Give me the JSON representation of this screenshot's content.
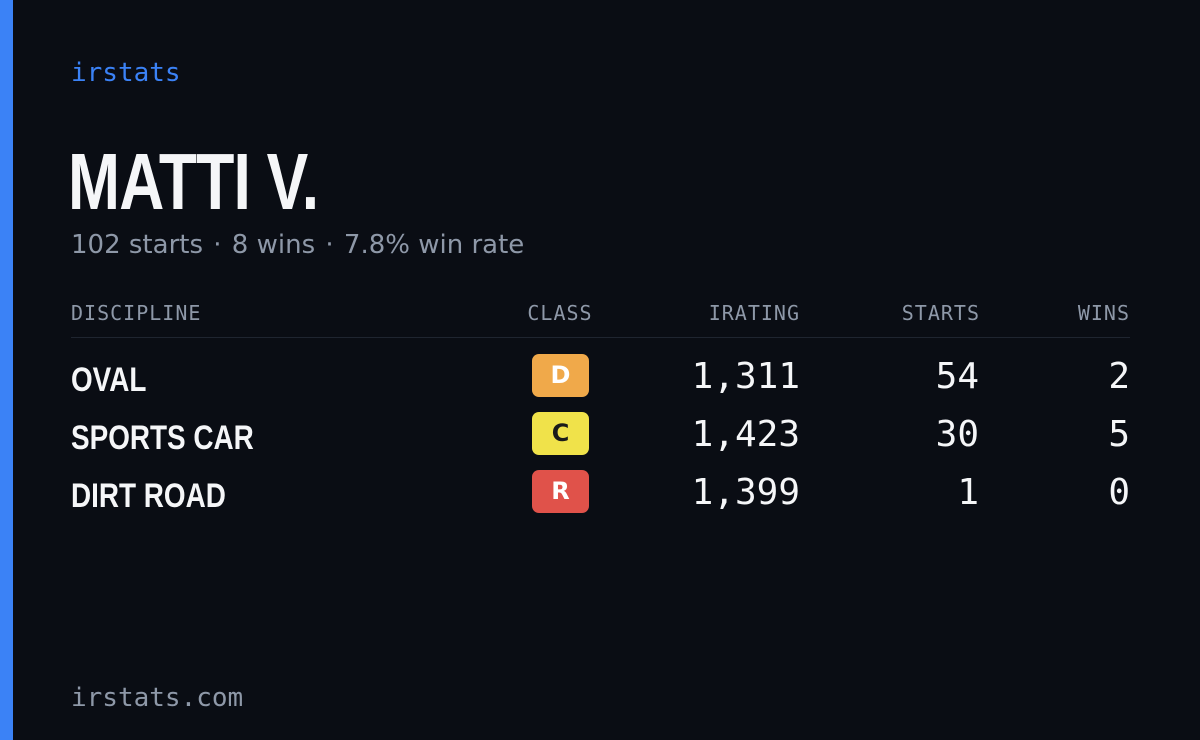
{
  "brand": "irstats",
  "driver": {
    "name": "MATTI V.",
    "summary": {
      "starts": "102 starts",
      "wins": "8 wins",
      "win_rate": "7.8% win rate",
      "separator": "·"
    }
  },
  "table": {
    "headers": {
      "discipline": "DISCIPLINE",
      "class": "CLASS",
      "irating": "IRATING",
      "starts": "STARTS",
      "wins": "WINS"
    },
    "rows": [
      {
        "discipline": "OVAL",
        "class": "D",
        "class_color": "#f0a94a",
        "class_text_color": "#ffffff",
        "irating": "1,311",
        "starts": "54",
        "wins": "2"
      },
      {
        "discipline": "SPORTS CAR",
        "class": "C",
        "class_color": "#f0e24a",
        "class_text_color": "#1a1a1a",
        "irating": "1,423",
        "starts": "30",
        "wins": "5"
      },
      {
        "discipline": "DIRT ROAD",
        "class": "R",
        "class_color": "#e0524a",
        "class_text_color": "#ffffff",
        "irating": "1,399",
        "starts": "1",
        "wins": "0"
      }
    ]
  },
  "footer": "irstats.com",
  "colors": {
    "background": "#0a0d14",
    "accent": "#3b82f6",
    "muted_text": "#8e98a8",
    "primary_text": "#f5f6f8"
  }
}
